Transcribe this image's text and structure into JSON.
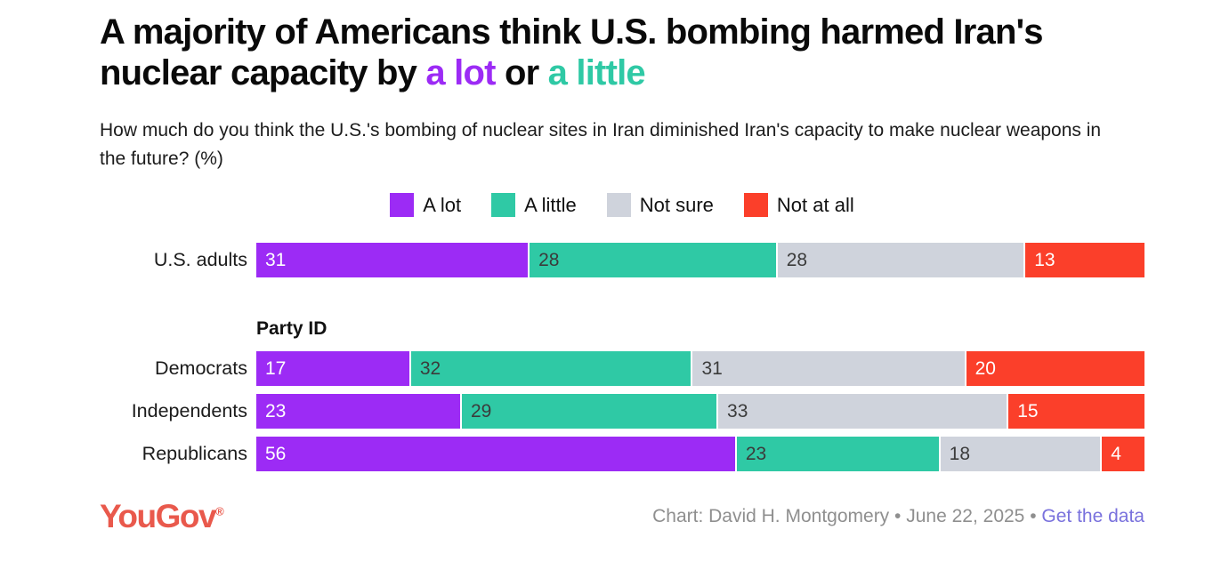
{
  "title": {
    "text_before": "A majority of Americans think U.S. bombing harmed Iran's nuclear capacity by ",
    "highlight_a_lot": "a lot",
    "text_middle": " or ",
    "highlight_a_little": "a little"
  },
  "subtitle": "How much do you think the U.S.'s bombing of nuclear sites in Iran diminished Iran's capacity to make nuclear weapons in the future? (%)",
  "colors": {
    "title_accent_purple": "#9c2bf5",
    "title_accent_teal": "#2fc9a5",
    "a_lot": "#9c2bf5",
    "a_little": "#2fc9a5",
    "not_sure": "#cfd3dc",
    "not_at_all": "#fb3f2a",
    "value_text_light": "#ffffff",
    "value_text_dark": "#3b3b3b",
    "logo_red": "#e9594c",
    "link_periwinkle": "#7a72dd",
    "attribution_gray": "#8f8f8f"
  },
  "legend": [
    {
      "label": "A lot",
      "color": "#9c2bf5"
    },
    {
      "label": "A little",
      "color": "#2fc9a5"
    },
    {
      "label": "Not sure",
      "color": "#cfd3dc"
    },
    {
      "label": "Not at all",
      "color": "#fb3f2a"
    }
  ],
  "chart_data": {
    "type": "bar",
    "orientation": "horizontal",
    "stacked": true,
    "unit": "%",
    "legend_position": "top-center",
    "series_names": [
      "A lot",
      "A little",
      "Not sure",
      "Not at all"
    ],
    "series_colors": [
      "#9c2bf5",
      "#2fc9a5",
      "#cfd3dc",
      "#fb3f2a"
    ],
    "series_value_text_colors": [
      "#ffffff",
      "#3b3b3b",
      "#3b3b3b",
      "#ffffff"
    ],
    "xlim": [
      0,
      100
    ],
    "groups": [
      {
        "heading": "",
        "rows": [
          {
            "label": "U.S. adults",
            "values": [
              31,
              28,
              28,
              13
            ]
          }
        ]
      },
      {
        "heading": "Party ID",
        "rows": [
          {
            "label": "Democrats",
            "values": [
              17,
              32,
              31,
              20
            ]
          },
          {
            "label": "Independents",
            "values": [
              23,
              29,
              33,
              15
            ]
          },
          {
            "label": "Republicans",
            "values": [
              56,
              23,
              18,
              4
            ]
          }
        ]
      }
    ]
  },
  "footer": {
    "logo_text": "YouGov",
    "logo_mark": "®",
    "credit": "Chart: David H. Montgomery",
    "separator": "•",
    "date": "June 22, 2025",
    "link_label": "Get the data"
  }
}
